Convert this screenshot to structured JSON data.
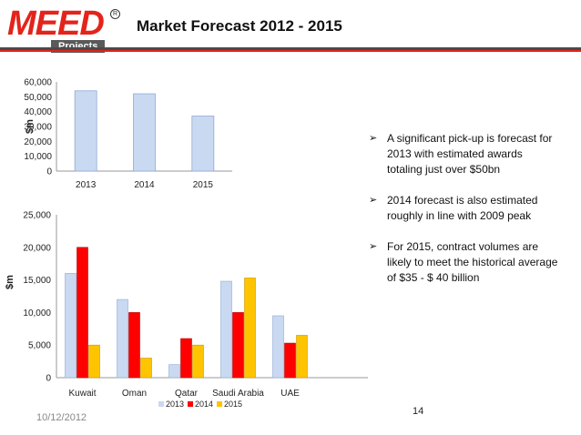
{
  "header": {
    "logo_word": "MEED",
    "logo_sub": "Projects",
    "logo_reg": "R",
    "title": "Market Forecast 2012 - 2015"
  },
  "colors": {
    "y2013": "#c9d9f1",
    "y2014": "#ff0000",
    "y2015": "#ffc400",
    "accent": "#e3241b"
  },
  "chart_data": [
    {
      "type": "bar",
      "categories": [
        "2013",
        "2014",
        "2015"
      ],
      "series": [
        {
          "values": [
            54000,
            52000,
            37000
          ]
        }
      ],
      "xlabel": "",
      "ylabel": "$m",
      "ylim": [
        0,
        60000
      ],
      "yticks": [
        "0",
        "10,000",
        "20,000",
        "30,000",
        "40,000",
        "50,000",
        "60,000"
      ],
      "legend": "none",
      "grid": false
    },
    {
      "type": "bar",
      "categories": [
        "Kuwait",
        "Oman",
        "Qatar",
        "Saudi Arabia",
        "UAE"
      ],
      "series": [
        {
          "name": "2013",
          "values": [
            16000,
            12000,
            2000,
            14800,
            9500
          ]
        },
        {
          "name": "2014",
          "values": [
            20000,
            10000,
            6000,
            10000,
            5300
          ]
        },
        {
          "name": "2015",
          "values": [
            5000,
            3000,
            5000,
            15300,
            6500
          ]
        }
      ],
      "xlabel": "",
      "ylabel": "$m",
      "ylim": [
        0,
        25000
      ],
      "yticks": [
        "0",
        "5,000",
        "10,000",
        "15,000",
        "20,000",
        "25,000"
      ],
      "legend": "bottom",
      "grid": false
    }
  ],
  "bullets": [
    "A significant pick-up is forecast for 2013 with estimated awards totaling just over $50bn",
    "2014 forecast is also estimated roughly in line with 2009 peak",
    "For 2015, contract volumes are likely to meet the historical average of $35 - $ 40 billion"
  ],
  "bullet_mark": "➢",
  "footer": {
    "date": "10/12/2012",
    "page": "14"
  }
}
